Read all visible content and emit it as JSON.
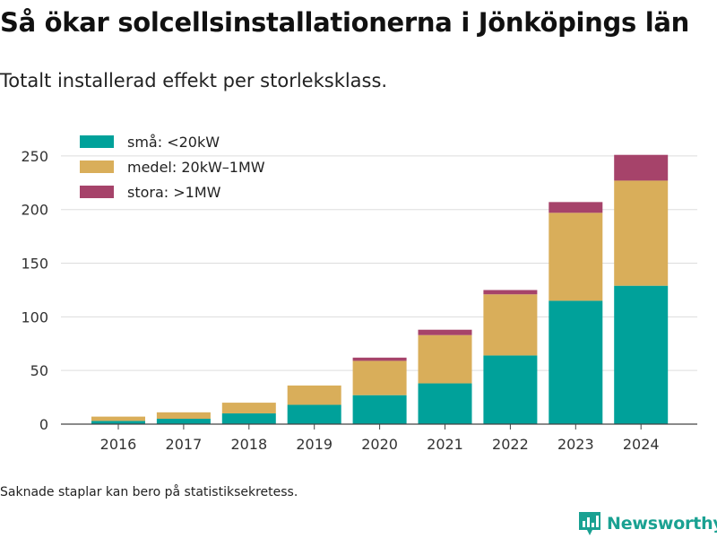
{
  "header": {
    "title": "Så ökar solcellsinstallationerna i Jönköpings län",
    "subtitle": "Totalt installerad effekt per storleksklass."
  },
  "footer": {
    "note": "Saknade staplar kan bero på statistiksekretess.",
    "brand": "Newsworthy",
    "brand_icon": "newsworthy-logo-icon"
  },
  "chart_data": {
    "type": "bar",
    "stacked": true,
    "title": "",
    "xlabel": "",
    "ylabel": "",
    "ylim": [
      0,
      275
    ],
    "yticks": [
      0,
      50,
      100,
      150,
      200,
      250
    ],
    "grid": true,
    "legend_position": "top-left",
    "categories": [
      "2016",
      "2017",
      "2018",
      "2019",
      "2020",
      "2021",
      "2022",
      "2023",
      "2024"
    ],
    "series": [
      {
        "name": "små: <20kW",
        "color": "#00a19a",
        "values": [
          3,
          5,
          10,
          18,
          27,
          38,
          64,
          115,
          129
        ]
      },
      {
        "name": "medel: 20kW–1MW",
        "color": "#d9ae5a",
        "values": [
          4,
          6,
          10,
          18,
          32,
          45,
          57,
          82,
          98
        ]
      },
      {
        "name": "stora: >1MW",
        "color": "#a6436a",
        "values": [
          0,
          0,
          0,
          0,
          3,
          5,
          4,
          10,
          24
        ]
      }
    ]
  }
}
